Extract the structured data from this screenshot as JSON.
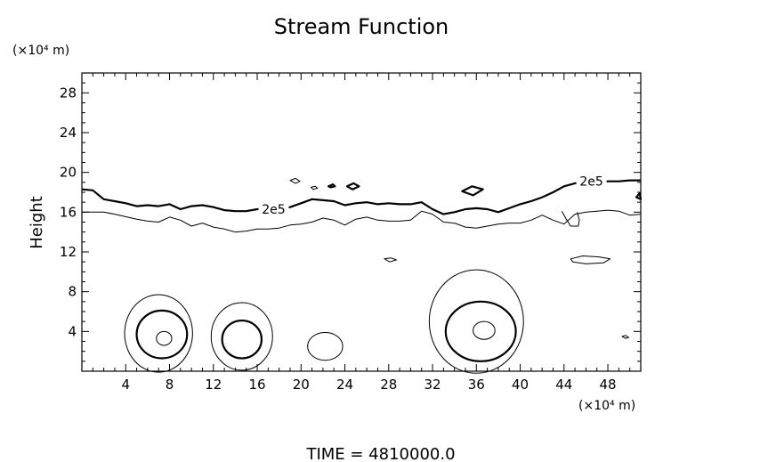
{
  "chart_data": {
    "type": "contour",
    "title": "Stream Function",
    "ylabel": "Height",
    "x_unit_label": "(×10⁴ m)",
    "y_unit_label": "(×10⁴ m)",
    "footer": "TIME  =  4810000.0",
    "xlim": [
      0,
      51
    ],
    "ylim": [
      0,
      30
    ],
    "x_ticks": [
      4,
      8,
      12,
      16,
      20,
      24,
      28,
      32,
      36,
      40,
      44,
      48
    ],
    "y_ticks": [
      4,
      8,
      12,
      16,
      20,
      24,
      28
    ],
    "contour_labels": [
      {
        "text": "2e5",
        "x": 17.5,
        "y": 16.3
      },
      {
        "text": "2e5",
        "x": 46.5,
        "y": 19.1
      }
    ],
    "contours": [
      {
        "name": "thick-main",
        "weight": "thick",
        "closed": false,
        "points": [
          [
            0,
            18.3
          ],
          [
            1,
            18.2
          ],
          [
            2,
            17.3
          ],
          [
            3,
            17.1
          ],
          [
            4,
            16.9
          ],
          [
            5,
            16.6
          ],
          [
            6,
            16.7
          ],
          [
            7,
            16.6
          ],
          [
            8,
            16.8
          ],
          [
            9,
            16.3
          ],
          [
            10,
            16.6
          ],
          [
            11,
            16.7
          ],
          [
            12,
            16.5
          ],
          [
            13,
            16.2
          ],
          [
            14,
            16.1
          ],
          [
            15,
            16.1
          ],
          [
            16,
            16.3
          ],
          [
            17,
            16.3
          ],
          [
            18,
            16.3
          ],
          [
            19,
            16.5
          ],
          [
            20,
            16.9
          ],
          [
            21,
            17.3
          ],
          [
            22,
            17.2
          ],
          [
            23,
            17.1
          ],
          [
            24,
            16.7
          ],
          [
            25,
            16.9
          ],
          [
            26,
            17.0
          ],
          [
            27,
            16.8
          ],
          [
            28,
            16.9
          ],
          [
            29,
            16.8
          ],
          [
            30,
            16.8
          ],
          [
            31,
            17.0
          ],
          [
            32,
            16.3
          ],
          [
            33,
            15.8
          ],
          [
            34,
            16.0
          ],
          [
            35,
            16.3
          ],
          [
            36,
            16.4
          ],
          [
            37,
            16.3
          ],
          [
            38,
            16.0
          ],
          [
            39,
            16.4
          ],
          [
            40,
            16.8
          ],
          [
            41,
            17.1
          ],
          [
            42,
            17.5
          ],
          [
            43,
            18.0
          ],
          [
            44,
            18.6
          ],
          [
            45,
            18.9
          ],
          [
            46,
            19.0
          ],
          [
            47,
            19.1
          ],
          [
            48,
            19.1
          ],
          [
            49,
            19.1
          ],
          [
            50,
            19.2
          ],
          [
            51,
            19.2
          ]
        ]
      },
      {
        "name": "thin-main",
        "weight": "thin",
        "closed": false,
        "points": [
          [
            0,
            16.0
          ],
          [
            2,
            16.0
          ],
          [
            3,
            15.8
          ],
          [
            5,
            15.3
          ],
          [
            6,
            15.1
          ],
          [
            7,
            15.0
          ],
          [
            8,
            15.5
          ],
          [
            9,
            15.2
          ],
          [
            10,
            14.6
          ],
          [
            11,
            14.9
          ],
          [
            12,
            14.5
          ],
          [
            13,
            14.3
          ],
          [
            14,
            14.0
          ],
          [
            15,
            14.1
          ],
          [
            16,
            14.3
          ],
          [
            17,
            14.3
          ],
          [
            18,
            14.4
          ],
          [
            19,
            14.7
          ],
          [
            20,
            14.8
          ],
          [
            21,
            15.0
          ],
          [
            22,
            15.4
          ],
          [
            23,
            15.2
          ],
          [
            24,
            14.7
          ],
          [
            25,
            15.3
          ],
          [
            26,
            15.5
          ],
          [
            27,
            15.2
          ],
          [
            28,
            15.1
          ],
          [
            29,
            15.1
          ],
          [
            30,
            15.2
          ],
          [
            31,
            16.1
          ],
          [
            32,
            15.8
          ],
          [
            33,
            15.0
          ],
          [
            34,
            14.9
          ],
          [
            35,
            14.5
          ],
          [
            36,
            14.4
          ],
          [
            37,
            14.6
          ],
          [
            38,
            14.8
          ],
          [
            39,
            14.9
          ],
          [
            40,
            14.9
          ],
          [
            41,
            15.2
          ],
          [
            42,
            15.7
          ],
          [
            43,
            15.2
          ],
          [
            44,
            14.8
          ],
          [
            45,
            15.8
          ],
          [
            46,
            16.0
          ],
          [
            47,
            16.1
          ],
          [
            48,
            16.2
          ],
          [
            49,
            16.1
          ],
          [
            50,
            15.7
          ],
          [
            51,
            15.8
          ]
        ]
      },
      {
        "name": "notch",
        "weight": "thin",
        "closed": false,
        "points": [
          [
            43.8,
            16.1
          ],
          [
            44.2,
            15.3
          ],
          [
            44.6,
            14.6
          ],
          [
            45.3,
            14.6
          ],
          [
            45.4,
            15.2
          ],
          [
            45.2,
            16.0
          ]
        ]
      },
      {
        "name": "isl-1",
        "weight": "thin",
        "closed": true,
        "points": [
          [
            19.0,
            19.2
          ],
          [
            19.5,
            19.4
          ],
          [
            19.9,
            19.1
          ],
          [
            19.5,
            18.9
          ]
        ]
      },
      {
        "name": "isl-2",
        "weight": "thin",
        "closed": true,
        "points": [
          [
            20.9,
            18.5
          ],
          [
            21.3,
            18.6
          ],
          [
            21.5,
            18.4
          ],
          [
            21.1,
            18.3
          ]
        ]
      },
      {
        "name": "isl-3",
        "weight": "thick",
        "closed": true,
        "points": [
          [
            22.5,
            18.6
          ],
          [
            22.9,
            18.8
          ],
          [
            23.1,
            18.6
          ],
          [
            22.7,
            18.5
          ]
        ]
      },
      {
        "name": "isl-4",
        "weight": "thick",
        "closed": true,
        "points": [
          [
            24.2,
            18.6
          ],
          [
            24.8,
            18.9
          ],
          [
            25.3,
            18.6
          ],
          [
            24.7,
            18.3
          ]
        ]
      },
      {
        "name": "isl-5",
        "weight": "thick",
        "closed": true,
        "points": [
          [
            34.7,
            18.1
          ],
          [
            35.6,
            18.6
          ],
          [
            36.6,
            18.3
          ],
          [
            35.7,
            17.7
          ]
        ]
      },
      {
        "name": "isl-6",
        "weight": "thin",
        "closed": true,
        "points": [
          [
            27.6,
            11.3
          ],
          [
            28.2,
            11.4
          ],
          [
            28.7,
            11.2
          ],
          [
            28.1,
            11.0
          ]
        ]
      },
      {
        "name": "isl-7",
        "weight": "thin",
        "closed": true,
        "points": [
          [
            44.6,
            11.3
          ],
          [
            45.7,
            11.6
          ],
          [
            47.2,
            11.5
          ],
          [
            48.2,
            11.3
          ],
          [
            47.6,
            10.9
          ],
          [
            46.0,
            10.8
          ],
          [
            44.8,
            11.0
          ]
        ]
      },
      {
        "name": "isl-8",
        "weight": "thin",
        "closed": true,
        "points": [
          [
            49.3,
            3.5
          ],
          [
            49.6,
            3.6
          ],
          [
            49.9,
            3.4
          ],
          [
            49.6,
            3.3
          ]
        ]
      },
      {
        "name": "isl-9",
        "weight": "thick",
        "closed": true,
        "points": [
          [
            50.6,
            17.5
          ],
          [
            50.9,
            17.9
          ],
          [
            51.0,
            17.3
          ]
        ]
      }
    ],
    "ellipses": [
      {
        "name": "vortex-a-outer",
        "weight": "thin",
        "cx": 7.0,
        "cy": 3.8,
        "rx": 3.1,
        "ry": 3.9
      },
      {
        "name": "vortex-a-mid",
        "weight": "thick",
        "cx": 7.3,
        "cy": 3.7,
        "rx": 2.3,
        "ry": 2.4
      },
      {
        "name": "vortex-a-inner",
        "weight": "thin",
        "cx": 7.5,
        "cy": 3.3,
        "rx": 0.7,
        "ry": 0.7
      },
      {
        "name": "vortex-b-outer",
        "weight": "thin",
        "cx": 14.6,
        "cy": 3.5,
        "rx": 2.8,
        "ry": 3.4
      },
      {
        "name": "vortex-b-mid",
        "weight": "thick",
        "cx": 14.6,
        "cy": 3.2,
        "rx": 1.8,
        "ry": 1.9
      },
      {
        "name": "vortex-c",
        "weight": "thin",
        "cx": 22.2,
        "cy": 2.5,
        "rx": 1.6,
        "ry": 1.4
      },
      {
        "name": "vortex-d-outer",
        "weight": "thin",
        "cx": 36.0,
        "cy": 5.0,
        "rx": 4.3,
        "ry": 5.2
      },
      {
        "name": "vortex-d-mid",
        "weight": "thick",
        "cx": 36.4,
        "cy": 4.0,
        "rx": 3.2,
        "ry": 3.0
      },
      {
        "name": "vortex-d-inner",
        "weight": "thin",
        "cx": 36.7,
        "cy": 4.1,
        "rx": 1.0,
        "ry": 0.9
      }
    ]
  }
}
